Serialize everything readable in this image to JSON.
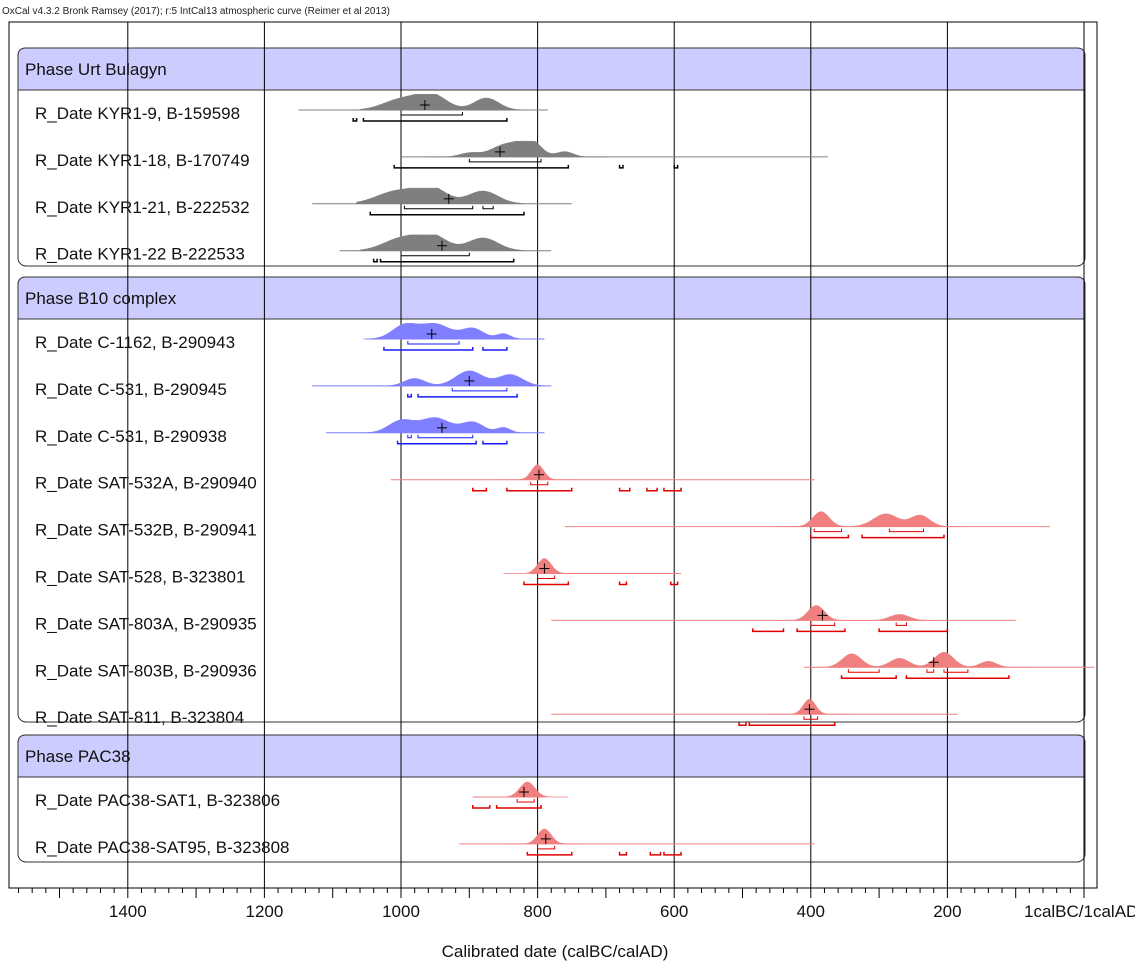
{
  "header": "OxCal v4.3.2 Bronk Ramsey (2017); r:5 IntCal13 atmospheric curve (Reimer et al 2013)",
  "chart_data": {
    "type": "oxcal-multiplot",
    "xlabel": "Calibrated date (calBC/calAD)",
    "xlim": [
      1570,
      -10
    ],
    "x_ticks": [
      {
        "value": 1400,
        "label": "1400"
      },
      {
        "value": 1200,
        "label": "1200"
      },
      {
        "value": 1000,
        "label": "1000"
      },
      {
        "value": 800,
        "label": "800"
      },
      {
        "value": 600,
        "label": "600"
      },
      {
        "value": 400,
        "label": "400"
      },
      {
        "value": 200,
        "label": "200"
      },
      {
        "value": 0,
        "label": "1calBC/1calAD"
      }
    ],
    "colors": {
      "grey": "#7f7f7f",
      "blue": "#7f7fff",
      "red": "#f07f7f",
      "phase_fill": "#ccccff",
      "dark_blue": "#1a1aff",
      "dark_red": "#e00000"
    },
    "phases": [
      {
        "name": "Phase Urt Bulagyn",
        "dates": [
          {
            "label": "R_Date KYR1-9, B-159598",
            "color": "grey",
            "prior": [
              1150,
              785
            ],
            "peaks": [
              [
                1000,
                26,
                0.7
              ],
              [
                955,
                22,
                1.0
              ],
              [
                875,
                18,
                0.8
              ]
            ],
            "mean": 965,
            "r1": [
              [
                1000,
                910
              ]
            ],
            "r2": [
              [
                1070,
                1065
              ],
              [
                1055,
                845
              ]
            ]
          },
          {
            "label": "R_Date KYR1-18, B-170749",
            "color": "grey",
            "prior": [
              1000,
              375
            ],
            "peaks": [
              [
                900,
                14,
                0.25
              ],
              [
                845,
                22,
                0.85
              ],
              [
                810,
                15,
                1.0
              ],
              [
                760,
                12,
                0.35
              ]
            ],
            "mean": 855,
            "r1": [
              [
                900,
                795
              ]
            ],
            "r2": [
              [
                1010,
                755
              ],
              [
                680,
                675
              ],
              [
                600,
                595
              ]
            ]
          },
          {
            "label": "R_Date KYR1-21, B-222532",
            "color": "grey",
            "prior": [
              1130,
              750
            ],
            "peaks": [
              [
                1005,
                30,
                0.85
              ],
              [
                955,
                22,
                1.0
              ],
              [
                880,
                22,
                0.85
              ]
            ],
            "mean": 930,
            "r1": [
              [
                995,
                895
              ],
              [
                880,
                865
              ]
            ],
            "r2": [
              [
                1045,
                820
              ]
            ]
          },
          {
            "label": "R_Date KYR1-22 B-222533",
            "color": "grey",
            "prior": [
              1090,
              780
            ],
            "peaks": [
              [
                1000,
                26,
                0.8
              ],
              [
                955,
                22,
                1.0
              ],
              [
                880,
                22,
                0.85
              ]
            ],
            "mean": 940,
            "r1": [
              [
                1000,
                900
              ]
            ],
            "r2": [
              [
                1040,
                1035
              ],
              [
                1030,
                835
              ]
            ]
          }
        ]
      },
      {
        "name": "Phase B10 complex",
        "dates": [
          {
            "label": "R_Date C-1162, B-290943",
            "color": "blue",
            "prior": [
              1050,
              790
            ],
            "peaks": [
              [
                995,
                18,
                0.9
              ],
              [
                950,
                22,
                1.0
              ],
              [
                895,
                16,
                0.7
              ],
              [
                850,
                10,
                0.35
              ]
            ],
            "mean": 955,
            "r1": [
              [
                990,
                915
              ]
            ],
            "r2": [
              [
                1025,
                895
              ],
              [
                880,
                845
              ]
            ]
          },
          {
            "label": "R_Date C-531, B-290945",
            "color": "blue",
            "prior": [
              1130,
              780
            ],
            "peaks": [
              [
                980,
                15,
                0.5
              ],
              [
                900,
                20,
                1.0
              ],
              [
                840,
                18,
                0.75
              ]
            ],
            "mean": 900,
            "r1": [
              [
                925,
                845
              ]
            ],
            "r2": [
              [
                990,
                985
              ],
              [
                975,
                830
              ]
            ]
          },
          {
            "label": "R_Date C-531, B-290938",
            "color": "blue",
            "prior": [
              1110,
              790
            ],
            "peaks": [
              [
                1000,
                18,
                0.8
              ],
              [
                950,
                22,
                1.0
              ],
              [
                895,
                16,
                0.7
              ],
              [
                850,
                10,
                0.35
              ]
            ],
            "mean": 940,
            "r1": [
              [
                990,
                985
              ],
              [
                975,
                895
              ]
            ],
            "r2": [
              [
                1005,
                890
              ],
              [
                880,
                845
              ]
            ]
          },
          {
            "label": "R_Date SAT-532A, B-290940",
            "color": "red",
            "prior": [
              1015,
              395
            ],
            "peaks": [
              [
                800,
                9,
                1.0
              ]
            ],
            "mean": 798,
            "r1": [
              [
                810,
                785
              ]
            ],
            "r2": [
              [
                895,
                875
              ],
              [
                845,
                750
              ],
              [
                680,
                665
              ],
              [
                640,
                625
              ],
              [
                615,
                590
              ]
            ]
          },
          {
            "label": "R_Date SAT-532B, B-290941",
            "color": "red",
            "prior": [
              760,
              50
            ],
            "peaks": [
              [
                385,
                12,
                1.0
              ],
              [
                290,
                18,
                0.85
              ],
              [
                240,
                14,
                0.75
              ]
            ],
            "mean": null,
            "r1": [
              [
                395,
                355
              ],
              [
                285,
                235
              ]
            ],
            "r2": [
              [
                400,
                345
              ],
              [
                325,
                205
              ]
            ]
          },
          {
            "label": "R_Date SAT-528, B-323801",
            "color": "red",
            "prior": [
              810,
              590
            ],
            "peaks": [
              [
                790,
                10,
                1.0
              ]
            ],
            "mean": 790,
            "r1": [
              [
                800,
                775
              ]
            ],
            "r2": [
              [
                820,
                755
              ],
              [
                680,
                670
              ],
              [
                605,
                595
              ]
            ]
          },
          {
            "label": "R_Date SAT-803A, B-290935",
            "color": "red",
            "prior": [
              780,
              100
            ],
            "peaks": [
              [
                392,
                12,
                1.0
              ],
              [
                270,
                14,
                0.4
              ]
            ],
            "mean": 383,
            "r1": [
              [
                400,
                365
              ],
              [
                275,
                260
              ]
            ],
            "r2": [
              [
                485,
                440
              ],
              [
                420,
                350
              ],
              [
                300,
                200
              ]
            ]
          },
          {
            "label": "R_Date SAT-803B, B-290936",
            "color": "red",
            "prior": [
              410,
              -15
            ],
            "peaks": [
              [
                340,
                14,
                0.9
              ],
              [
                270,
                14,
                0.6
              ],
              [
                205,
                14,
                1.0
              ],
              [
                140,
                12,
                0.4
              ]
            ],
            "mean": 220,
            "r1": [
              [
                345,
                300
              ],
              [
                230,
                220
              ],
              [
                205,
                170
              ]
            ],
            "r2": [
              [
                355,
                275
              ],
              [
                260,
                110
              ]
            ]
          },
          {
            "label": "R_Date SAT-811, B-323804",
            "color": "red",
            "prior": [
              780,
              185
            ],
            "peaks": [
              [
                402,
                9,
                1.0
              ]
            ],
            "mean": 402,
            "r1": [
              [
                410,
                390
              ]
            ],
            "r2": [
              [
                505,
                495
              ],
              [
                490,
                365
              ]
            ]
          }
        ]
      },
      {
        "name": "Phase PAC38",
        "dates": [
          {
            "label": "R_Date PAC38-SAT1, B-323806",
            "color": "red",
            "prior": [
              895,
              790
            ],
            "peaks": [
              [
                815,
                11,
                1.0
              ]
            ],
            "mean": 820,
            "r1": [
              [
                830,
                805
              ]
            ],
            "r2": [
              [
                895,
                870
              ],
              [
                860,
                795
              ]
            ]
          },
          {
            "label": "R_Date PAC38-SAT95, B-323808",
            "color": "red",
            "prior": [
              915,
              395
            ],
            "peaks": [
              [
                790,
                10,
                1.0
              ]
            ],
            "mean": 788,
            "r1": [
              [
                800,
                775
              ]
            ],
            "r2": [
              [
                815,
                750
              ],
              [
                680,
                670
              ],
              [
                635,
                620
              ],
              [
                615,
                590
              ]
            ]
          }
        ]
      }
    ]
  }
}
